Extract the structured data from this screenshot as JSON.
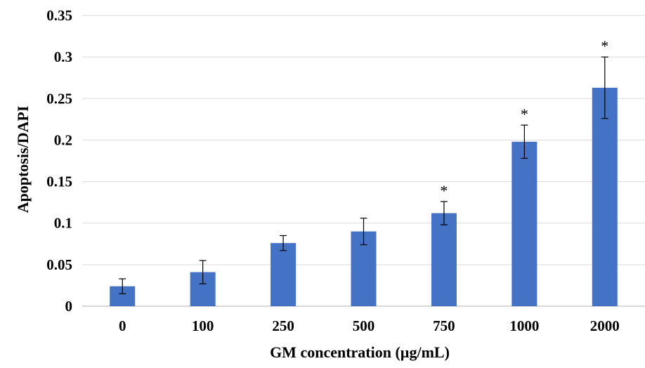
{
  "chart_data": {
    "type": "bar",
    "title": "",
    "xlabel": "GM concentration (µg/mL)",
    "ylabel": "Apoptosis/DAPI",
    "categories": [
      "0",
      "100",
      "250",
      "500",
      "750",
      "1000",
      "2000"
    ],
    "values": [
      0.024,
      0.041,
      0.076,
      0.09,
      0.112,
      0.198,
      0.263
    ],
    "error": [
      0.009,
      0.014,
      0.009,
      0.016,
      0.014,
      0.02,
      0.037
    ],
    "significance": [
      "",
      "",
      "",
      "",
      "*",
      "*",
      "*"
    ],
    "ylim": [
      0,
      0.35
    ],
    "yticks": [
      "0",
      "0.05",
      "0.1",
      "0.15",
      "0.2",
      "0.25",
      "0.3",
      "0.35"
    ],
    "grid": true,
    "legend": "none",
    "bar_color": "#4472c4"
  }
}
